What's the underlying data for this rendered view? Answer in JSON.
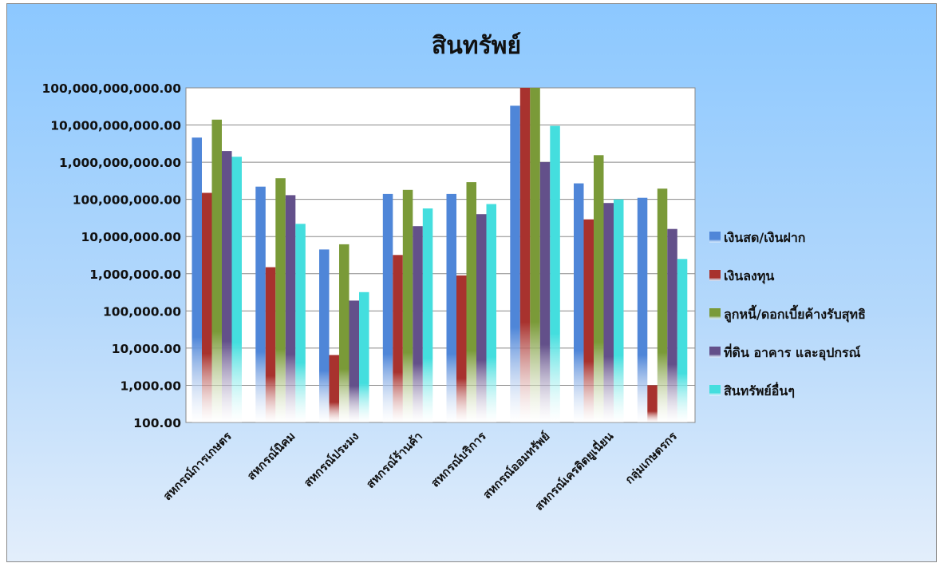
{
  "chart_data": {
    "type": "bar",
    "title": "สินทรัพย์",
    "y_scale": "log",
    "ylim": [
      100,
      100000000000
    ],
    "y_ticks": [
      "100,000,000,000.00",
      "10,000,000,000.00",
      "1,000,000,000.00",
      "100,000,000.00",
      "10,000,000.00",
      "1,000,000.00",
      "100,000.00",
      "10,000.00",
      "1,000.00",
      "100.00"
    ],
    "y_tick_values": [
      100000000000,
      10000000000,
      1000000000,
      100000000,
      10000000,
      1000000,
      100000,
      10000,
      1000,
      100
    ],
    "categories": [
      "สหกรณ์การเกษตร",
      "สหกรณ์นิคม",
      "สหกรณ์ประมง",
      "สหกรณ์ร้านค้า",
      "สหกรณ์บริการ",
      "สหกรณ์ออมทรัพย์",
      "สหกรณ์เครดิตยูเนี่ยน",
      "กลุ่มเกษตรกร"
    ],
    "series": [
      {
        "name": "เงินสด/เงินฝาก",
        "color": "#4f86d8",
        "values": [
          4600000000,
          220000000,
          4500000,
          140000000,
          140000000,
          33000000000,
          270000000,
          110000000
        ]
      },
      {
        "name": "เงินลงทุน",
        "color": "#a8322e",
        "values": [
          150000000,
          1500000,
          6500,
          3200000,
          900000,
          100000000000,
          29000000,
          1000
        ]
      },
      {
        "name": "ลูกหนี้/ดอกเบี้ยค้างรับสุทธิ",
        "color": "#7a9a38",
        "values": [
          14000000000,
          370000000,
          6200000,
          180000000,
          290000000,
          100000000000,
          1550000000,
          195000000
        ]
      },
      {
        "name": "ที่ดิน อาคาร และอุปกรณ์",
        "color": "#63508a",
        "values": [
          2000000000,
          130000000,
          190000,
          19000000,
          40000000,
          1000000000,
          80000000,
          16000000
        ]
      },
      {
        "name": "สินทรัพย์อื่นๆ",
        "color": "#44dede",
        "values": [
          1400000000,
          22000000,
          320000,
          57000000,
          75000000,
          9500000000,
          100000000,
          2500000
        ]
      }
    ],
    "grid": true,
    "legend_position": "right"
  }
}
